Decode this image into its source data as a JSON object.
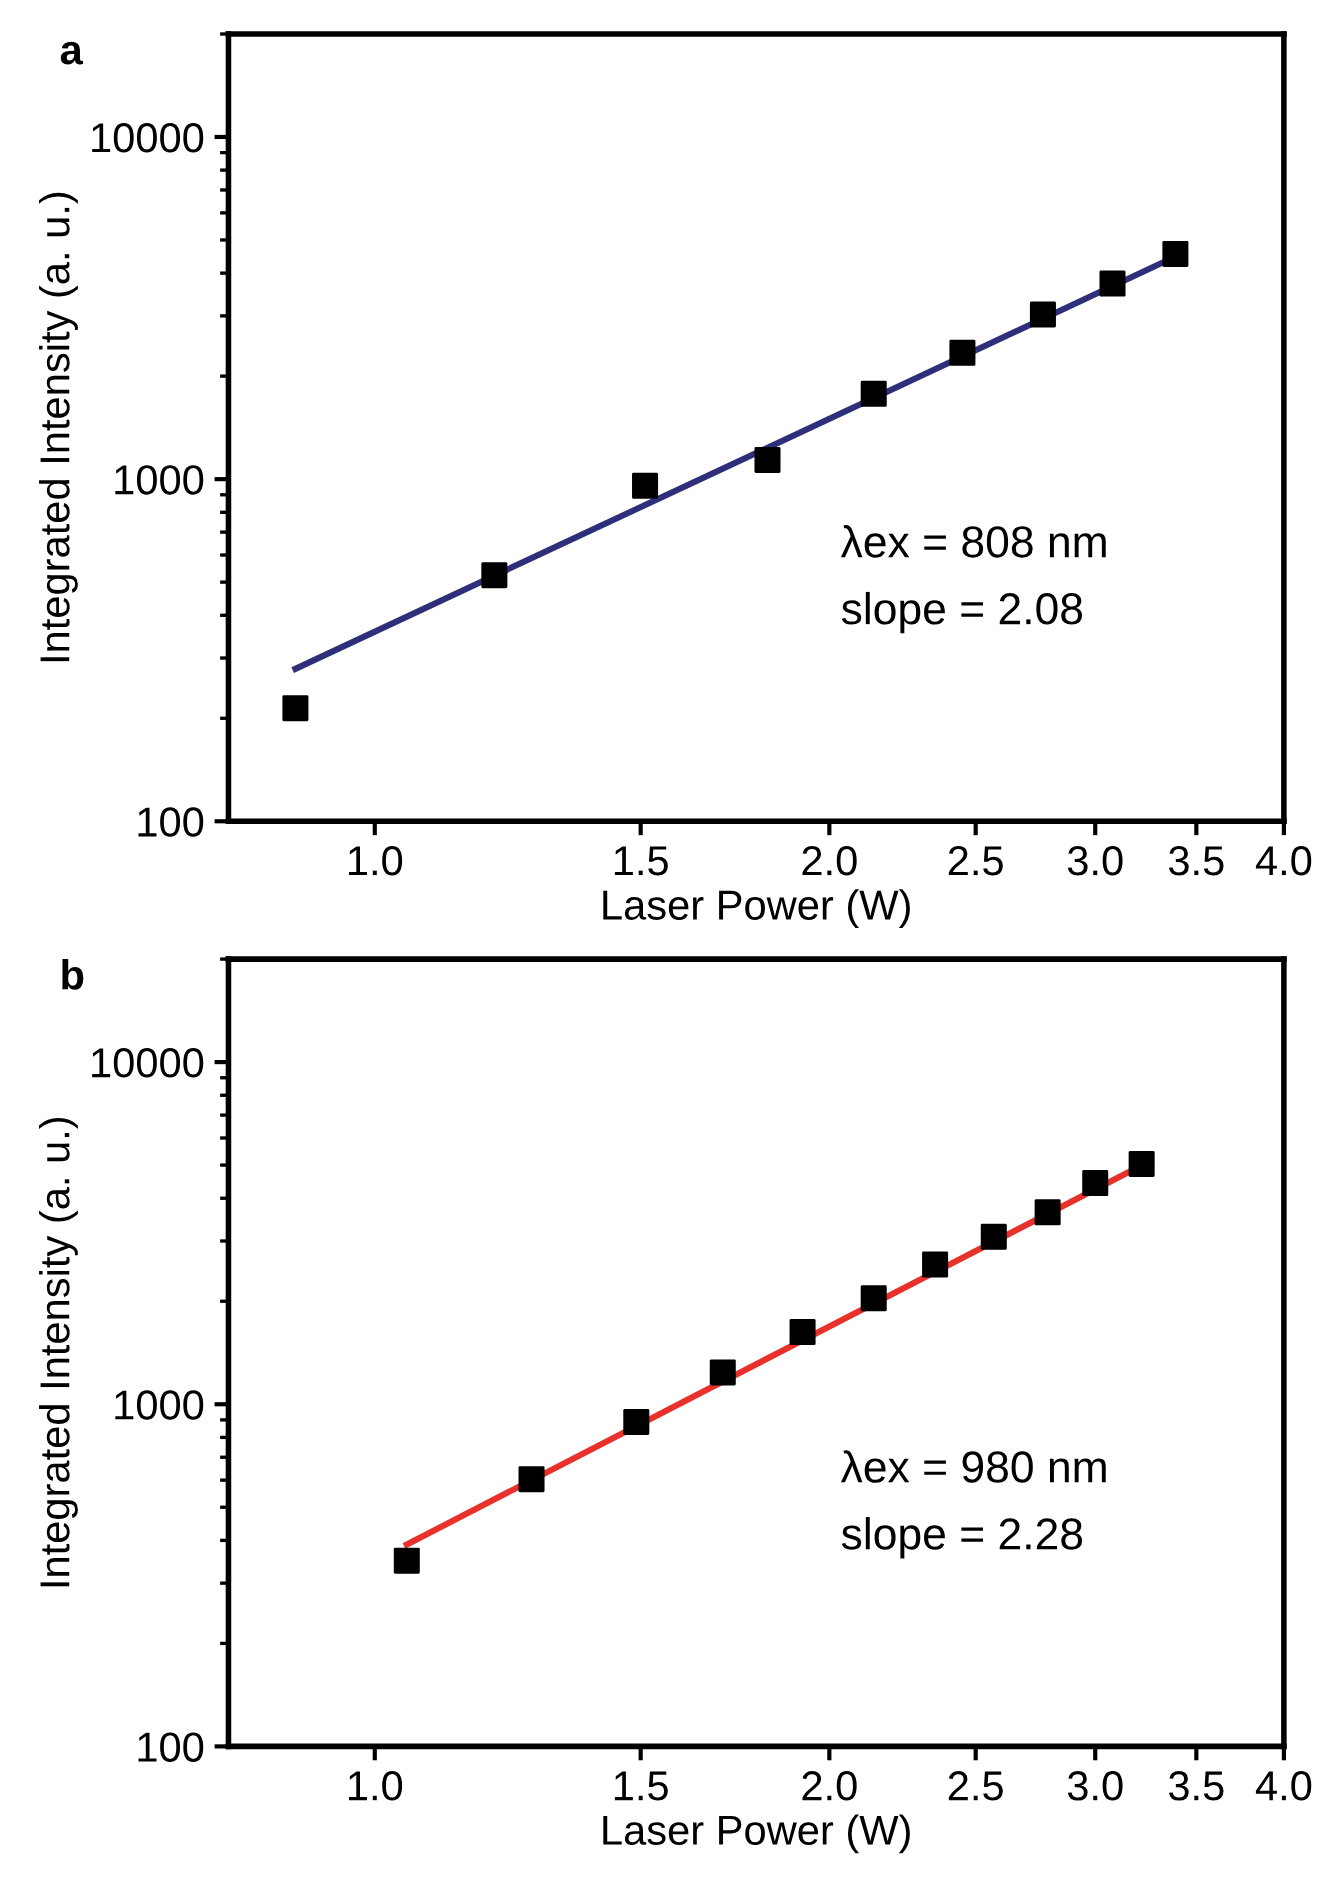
{
  "chart_data": [
    {
      "type": "scatter",
      "title": "a",
      "xlabel": "Laser Power (W)",
      "ylabel": "Integrated Intensity (a. u.)",
      "log": "xy",
      "xlim": [
        0.8,
        4.0
      ],
      "xticks": [
        {
          "value": 1.0,
          "label": "1.0"
        },
        1.5,
        {
          "value": 2.0,
          "label": "2.0"
        },
        2.5,
        {
          "value": 3.0,
          "label": "3.0"
        },
        3.5,
        {
          "value": 4.0,
          "label": "4.0"
        }
      ],
      "ylim": [
        100,
        20000
      ],
      "yticks": [
        100,
        1000,
        10000
      ],
      "grid": false,
      "legend": false,
      "series": [
        {
          "marker": "square",
          "color": "#000000",
          "x": [
            0.886,
            1.2,
            1.51,
            1.82,
            2.14,
            2.45,
            2.77,
            3.08,
            3.39
          ],
          "values": [
            214,
            524,
            956,
            1138,
            1776,
            2340,
            3030,
            3730,
            4550
          ]
        },
        {
          "type": "line",
          "marker": "none",
          "line_style": "solid",
          "color": "#2e2e7a",
          "x": [
            0.886,
            3.39
          ],
          "values": [
            279,
            4470
          ]
        }
      ],
      "annotations": [
        "λex = 808 nm",
        "slope = 2.08"
      ]
    },
    {
      "type": "scatter",
      "title": "b",
      "xlabel": "Laser Power (W)",
      "ylabel": "Integrated Intensity (a. u.)",
      "log": "xy",
      "xlim": [
        0.8,
        4.0
      ],
      "xticks": [
        {
          "value": 1.0,
          "label": "1.0"
        },
        1.5,
        {
          "value": 2.0,
          "label": "2.0"
        },
        2.5,
        {
          "value": 3.0,
          "label": "3.0"
        },
        3.5,
        {
          "value": 4.0,
          "label": "4.0"
        }
      ],
      "ylim": [
        100,
        20000
      ],
      "yticks": [
        100,
        1000,
        10000
      ],
      "grid": false,
      "legend": false,
      "series": [
        {
          "marker": "square",
          "color": "#000000",
          "x": [
            1.05,
            1.27,
            1.49,
            1.7,
            1.92,
            2.14,
            2.35,
            2.57,
            2.79,
            3.0,
            3.22
          ],
          "values": [
            349,
            604,
            888,
            1239,
            1626,
            2040,
            2560,
            3085,
            3640,
            4430,
            5040
          ]
        },
        {
          "type": "line",
          "marker": "none",
          "line_style": "solid",
          "color": "#e8312a",
          "x": [
            1.05,
            3.22
          ],
          "values": [
            389,
            4990
          ]
        }
      ],
      "annotations": [
        "λex = 980 nm",
        "slope = 2.28"
      ]
    }
  ]
}
